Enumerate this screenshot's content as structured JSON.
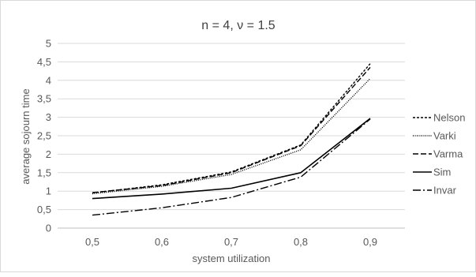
{
  "chart_data": {
    "type": "line",
    "title": "n = 4, ν = 1.5",
    "xlabel": "system utilization",
    "ylabel": "average sojourn time",
    "categories": [
      "0,5",
      "0,6",
      "0,7",
      "0,8",
      "0,9"
    ],
    "ylim": [
      0,
      5
    ],
    "yticks": [
      "0",
      "0,5",
      "1",
      "1,5",
      "2",
      "2,5",
      "3",
      "3,5",
      "4",
      "4,5",
      "5"
    ],
    "grid": "horizontal",
    "legend_position": "right",
    "series": [
      {
        "name": "Nelson",
        "values": [
          0.95,
          1.17,
          1.52,
          2.25,
          4.45
        ],
        "color": "#000000",
        "dash": "3,2"
      },
      {
        "name": "Varki",
        "values": [
          0.93,
          1.13,
          1.45,
          2.12,
          4.05
        ],
        "color": "#000000",
        "dash": "1,1.5"
      },
      {
        "name": "Varma",
        "values": [
          0.96,
          1.15,
          1.5,
          2.23,
          4.35
        ],
        "color": "#000000",
        "dash": "7,3"
      },
      {
        "name": "Sim",
        "values": [
          0.8,
          0.92,
          1.08,
          1.5,
          2.97
        ],
        "color": "#000000",
        "dash": ""
      },
      {
        "name": "Invar",
        "values": [
          0.35,
          0.55,
          0.83,
          1.38,
          2.95
        ],
        "color": "#000000",
        "dash": "10,3,2,3"
      }
    ]
  }
}
